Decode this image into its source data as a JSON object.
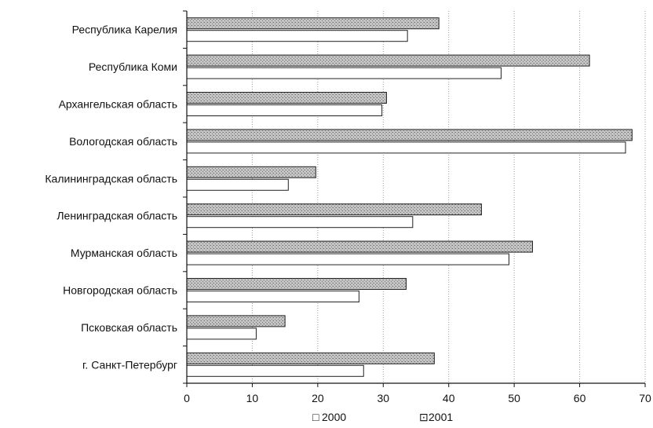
{
  "chart_data": {
    "type": "bar",
    "orientation": "horizontal",
    "title": "",
    "xlabel": "",
    "ylabel": "",
    "xlim": [
      0,
      70
    ],
    "xticks": [
      0,
      10,
      20,
      30,
      40,
      50,
      60,
      70
    ],
    "grid": true,
    "legend_position": "bottom",
    "categories": [
      "Республика Карелия",
      "Республика Коми",
      "Архангельская область",
      "Вологодская область",
      "Калининградская область",
      "Ленинградская область",
      "Мурманская область",
      "Новгородская область",
      "Псковская область",
      "г. Санкт-Петербург"
    ],
    "series": [
      {
        "name": "2000",
        "color": "#ffffff",
        "values": [
          33.7,
          48,
          29.8,
          67,
          15.5,
          34.5,
          49.2,
          26.3,
          10.6,
          27
        ]
      },
      {
        "name": "2001",
        "color": "#b8b8b8",
        "values": [
          38.5,
          61.5,
          30.5,
          68,
          19.7,
          45,
          52.8,
          33.5,
          15,
          37.8
        ]
      }
    ],
    "legend_symbols": [
      "□",
      "⊡"
    ]
  }
}
